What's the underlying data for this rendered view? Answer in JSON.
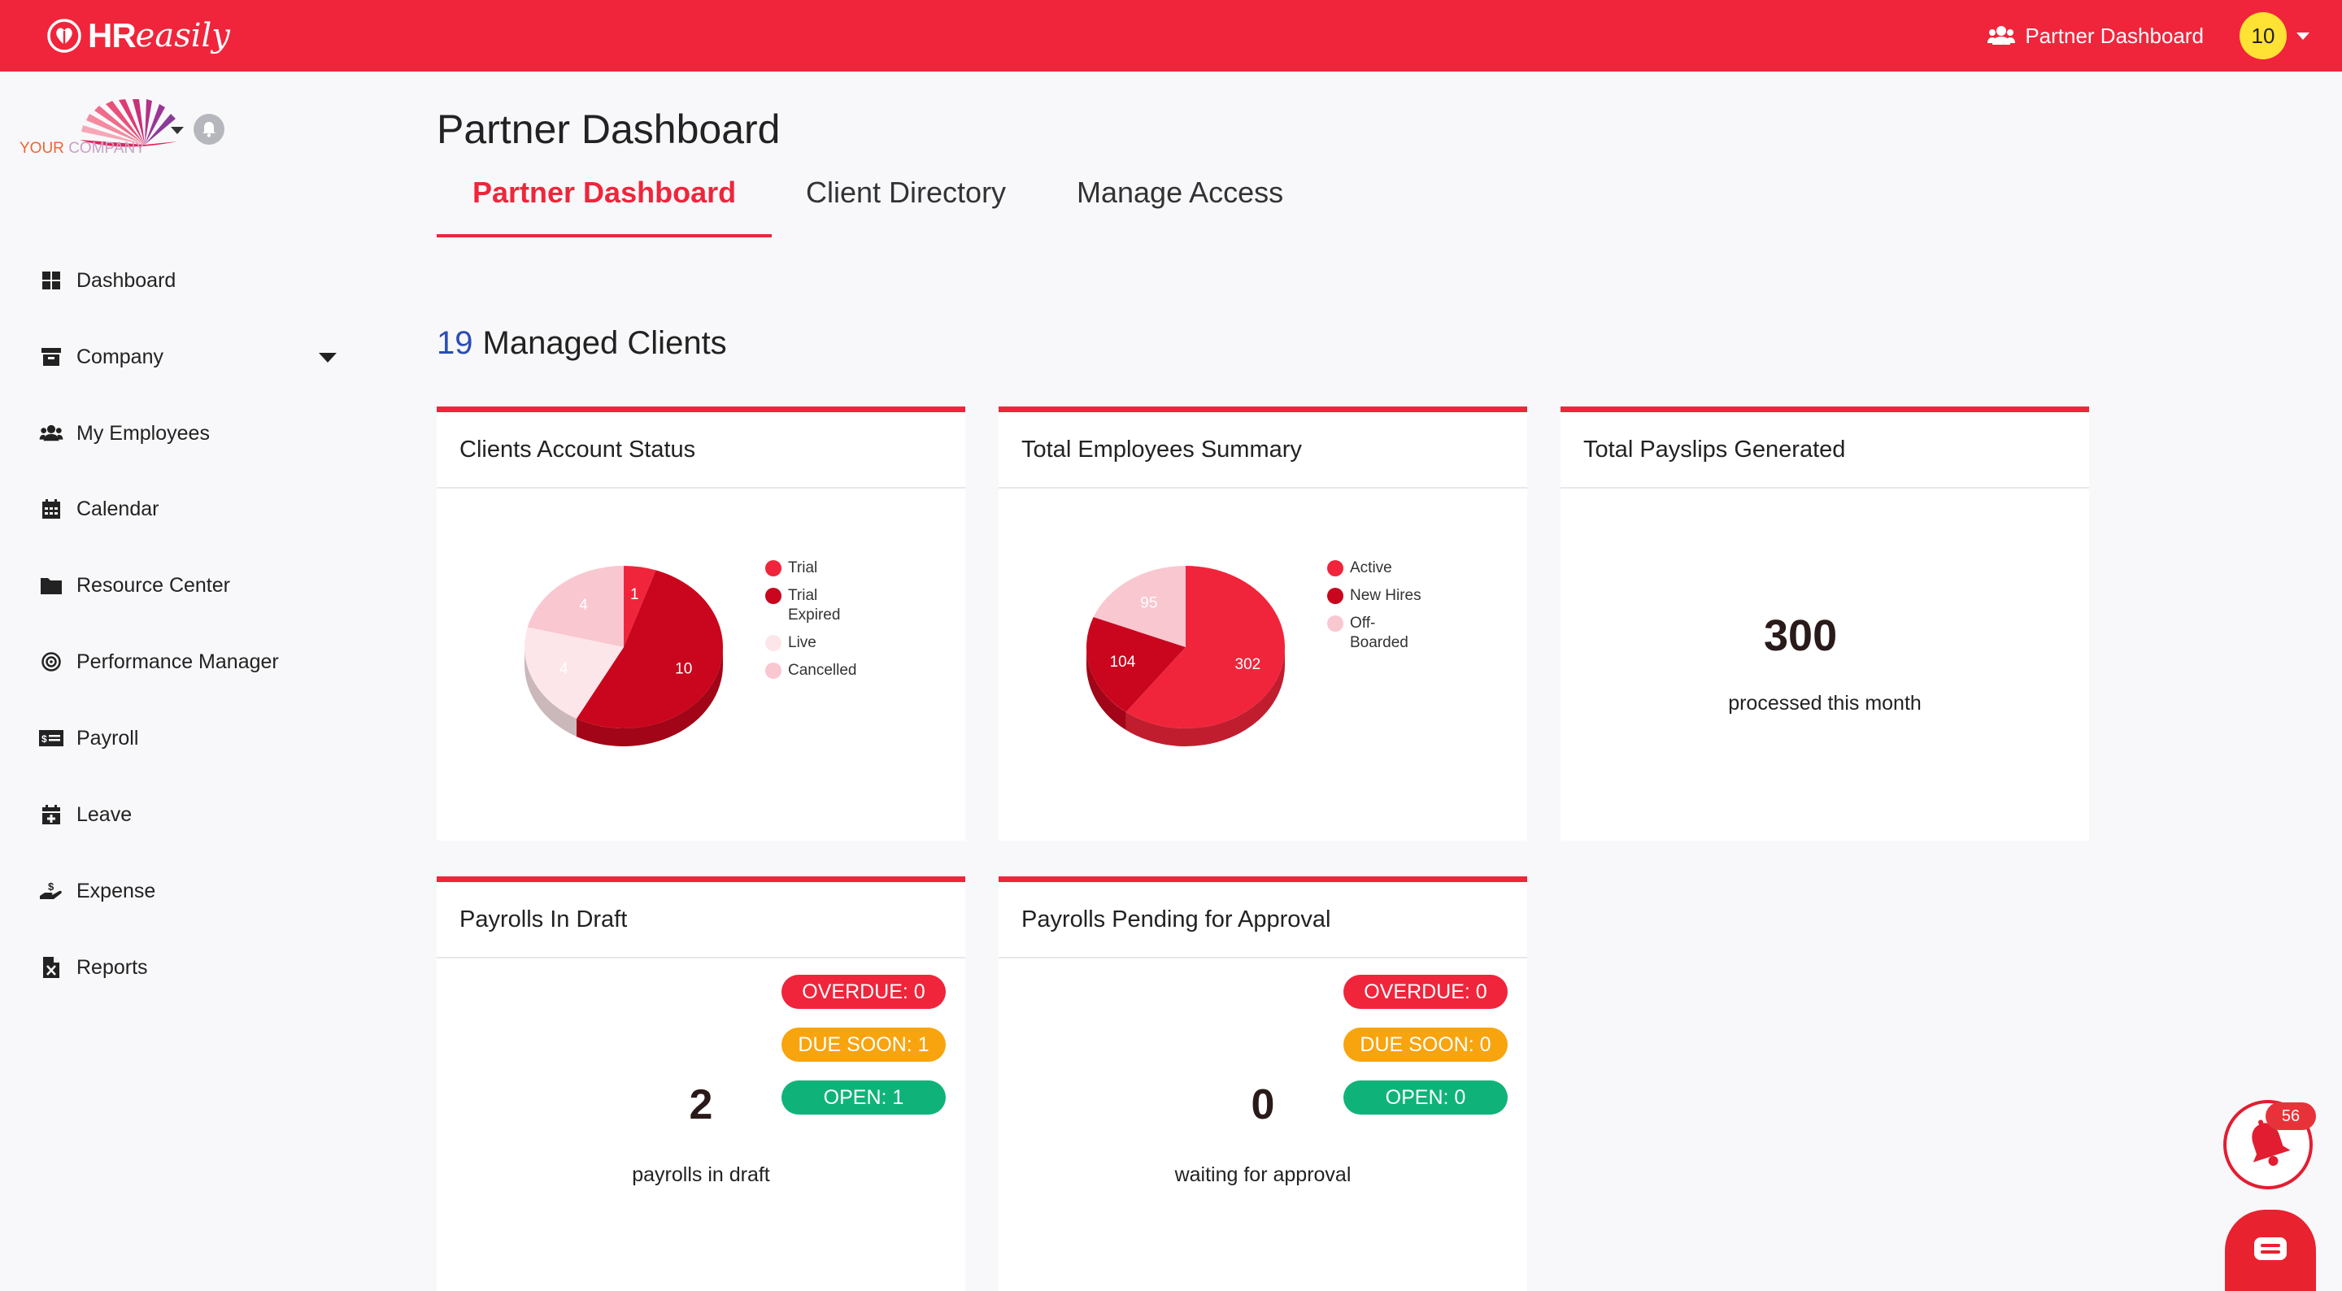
{
  "topbar": {
    "brand_hr": "HR",
    "brand_easily": "easily",
    "partner_dashboard_label": "Partner Dashboard",
    "user_badge": "10",
    "colors": {
      "bar": "#f0253b",
      "badge": "#ffe234"
    }
  },
  "sidebar": {
    "company_logo_text": {
      "your": "YOUR",
      "company": "COMPANY"
    },
    "items": [
      {
        "label": "Dashboard",
        "icon": "dashboard-grid-icon"
      },
      {
        "label": "Company",
        "icon": "archive-box-icon"
      },
      {
        "label": "My Employees",
        "icon": "users-icon"
      },
      {
        "label": "Calendar",
        "icon": "calendar-icon"
      },
      {
        "label": "Resource Center",
        "icon": "folder-icon"
      },
      {
        "label": "Performance Manager",
        "icon": "target-icon"
      },
      {
        "label": "Payroll",
        "icon": "money-bill-icon"
      },
      {
        "label": "Leave",
        "icon": "calendar-plus-icon"
      },
      {
        "label": "Expense",
        "icon": "hand-coin-icon"
      },
      {
        "label": "Reports",
        "icon": "excel-file-icon"
      }
    ]
  },
  "main": {
    "page_title": "Partner Dashboard",
    "tabs": [
      {
        "label": "Partner Dashboard",
        "active": true
      },
      {
        "label": "Client Directory",
        "active": false
      },
      {
        "label": "Manage Access",
        "active": false
      }
    ],
    "managed_clients": {
      "count": "19",
      "label": "Managed Clients"
    }
  },
  "cards": {
    "account_status": {
      "title": "Clients Account Status",
      "legend": [
        "Trial",
        "Trial Expired",
        "Live",
        "Cancelled"
      ]
    },
    "employees_summary": {
      "title": "Total Employees Summary",
      "legend": [
        "Active",
        "New Hires",
        "Off-Boarded"
      ]
    },
    "payslips": {
      "title": "Total Payslips Generated",
      "value": "300",
      "caption": "processed this month"
    },
    "payrolls_draft": {
      "title": "Payrolls In Draft",
      "overdue": "OVERDUE: 0",
      "due_soon": "DUE SOON: 1",
      "open": "OPEN: 1",
      "value": "2",
      "caption": "payrolls in draft"
    },
    "payrolls_pending": {
      "title": "Payrolls Pending for Approval",
      "overdue": "OVERDUE: 0",
      "due_soon": "DUE SOON: 0",
      "open": "OPEN: 0",
      "value": "0",
      "caption": "waiting for approval"
    }
  },
  "chart_data": [
    {
      "type": "pie",
      "title": "Clients Account Status",
      "categories": [
        "Trial",
        "Trial Expired",
        "Live",
        "Cancelled"
      ],
      "values": [
        1,
        10,
        4,
        4
      ],
      "colors": [
        "#f0253b",
        "#c9061d",
        "#fde6ea",
        "#f9c7d0"
      ]
    },
    {
      "type": "pie",
      "title": "Total Employees Summary",
      "categories": [
        "Active",
        "New Hires",
        "Off-Boarded"
      ],
      "values": [
        302,
        104,
        95
      ],
      "colors": [
        "#f0253b",
        "#c9061d",
        "#f9c7d0"
      ]
    }
  ],
  "floating": {
    "notification_count": "56"
  }
}
